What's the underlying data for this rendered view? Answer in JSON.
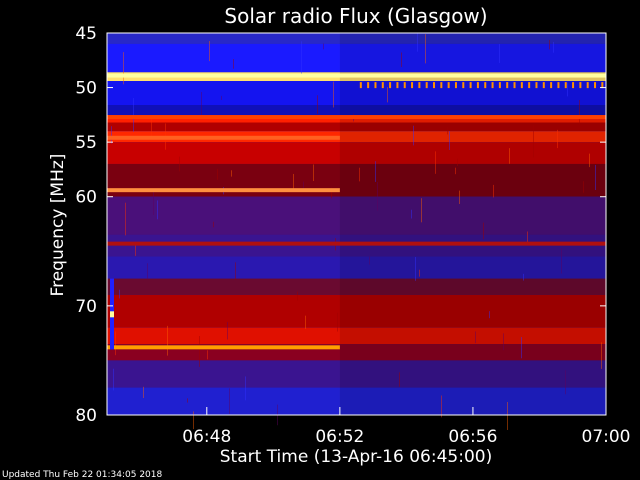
{
  "chart_data": {
    "type": "heatmap",
    "title": "Solar radio Flux (Glasgow)",
    "xlabel": "Start Time (13-Apr-16 06:45:00)",
    "ylabel": "Frequency [MHz]",
    "x_range": [
      "06:45",
      "07:00"
    ],
    "y_range": [
      45,
      80
    ],
    "y_inverted": true,
    "x_ticks": [
      {
        "label": "06:48",
        "minute": 48
      },
      {
        "label": "06:52",
        "minute": 52
      },
      {
        "label": "06:56",
        "minute": 56
      },
      {
        "label": "07:00",
        "minute": 60
      }
    ],
    "y_ticks": [
      45,
      50,
      55,
      60,
      70,
      80
    ],
    "colormap": [
      "#1010a0",
      "#2020ff",
      "#800000",
      "#ff2000",
      "#ff8000",
      "#ffff80"
    ],
    "bands": [
      {
        "from": 45.0,
        "to": 46.0,
        "color": "#2828c8"
      },
      {
        "from": 46.0,
        "to": 48.6,
        "color": "#1a1aff"
      },
      {
        "from": 48.6,
        "to": 49.4,
        "color": "#ffe070"
      },
      {
        "from": 49.4,
        "to": 51.6,
        "color": "#1414f0"
      },
      {
        "from": 51.6,
        "to": 52.6,
        "color": "#1010b8"
      },
      {
        "from": 52.6,
        "to": 53.2,
        "color": "#ff2000"
      },
      {
        "from": 53.2,
        "to": 54.0,
        "color": "#b00000"
      },
      {
        "from": 54.0,
        "to": 55.0,
        "color": "#ff2800"
      },
      {
        "from": 55.0,
        "to": 57.0,
        "color": "#c80000"
      },
      {
        "from": 57.0,
        "to": 60.0,
        "color": "#7a0010"
      },
      {
        "from": 60.0,
        "to": 63.5,
        "color": "#4a107a"
      },
      {
        "from": 63.5,
        "to": 65.5,
        "color": "#3a1490"
      },
      {
        "from": 65.5,
        "to": 67.5,
        "color": "#2a18b0"
      },
      {
        "from": 67.5,
        "to": 69.0,
        "color": "#6a0a30"
      },
      {
        "from": 69.0,
        "to": 72.0,
        "color": "#b00000"
      },
      {
        "from": 72.0,
        "to": 73.5,
        "color": "#e01000"
      },
      {
        "from": 73.5,
        "to": 75.0,
        "color": "#8a0020"
      },
      {
        "from": 75.0,
        "to": 77.5,
        "color": "#3a1490"
      },
      {
        "from": 77.5,
        "to": 80.0,
        "color": "#2020d0"
      }
    ],
    "lines": [
      {
        "freq": 48.9,
        "start_min": 0,
        "end_min": 15,
        "color": "#ffffa0"
      },
      {
        "freq": 52.7,
        "start_min": 0,
        "end_min": 15,
        "color": "#ff4000"
      },
      {
        "freq": 54.6,
        "start_min": 0,
        "end_min": 7,
        "color": "#ff6020"
      },
      {
        "freq": 59.4,
        "start_min": 0,
        "end_min": 7,
        "color": "#ff9040"
      },
      {
        "freq": 73.8,
        "start_min": 0,
        "end_min": 7,
        "color": "#ffa000"
      },
      {
        "freq": 64.3,
        "start_min": 0,
        "end_min": 15,
        "color": "#b01010"
      }
    ],
    "footer": "Updated Thu Feb 22 01:34:05 2018"
  }
}
